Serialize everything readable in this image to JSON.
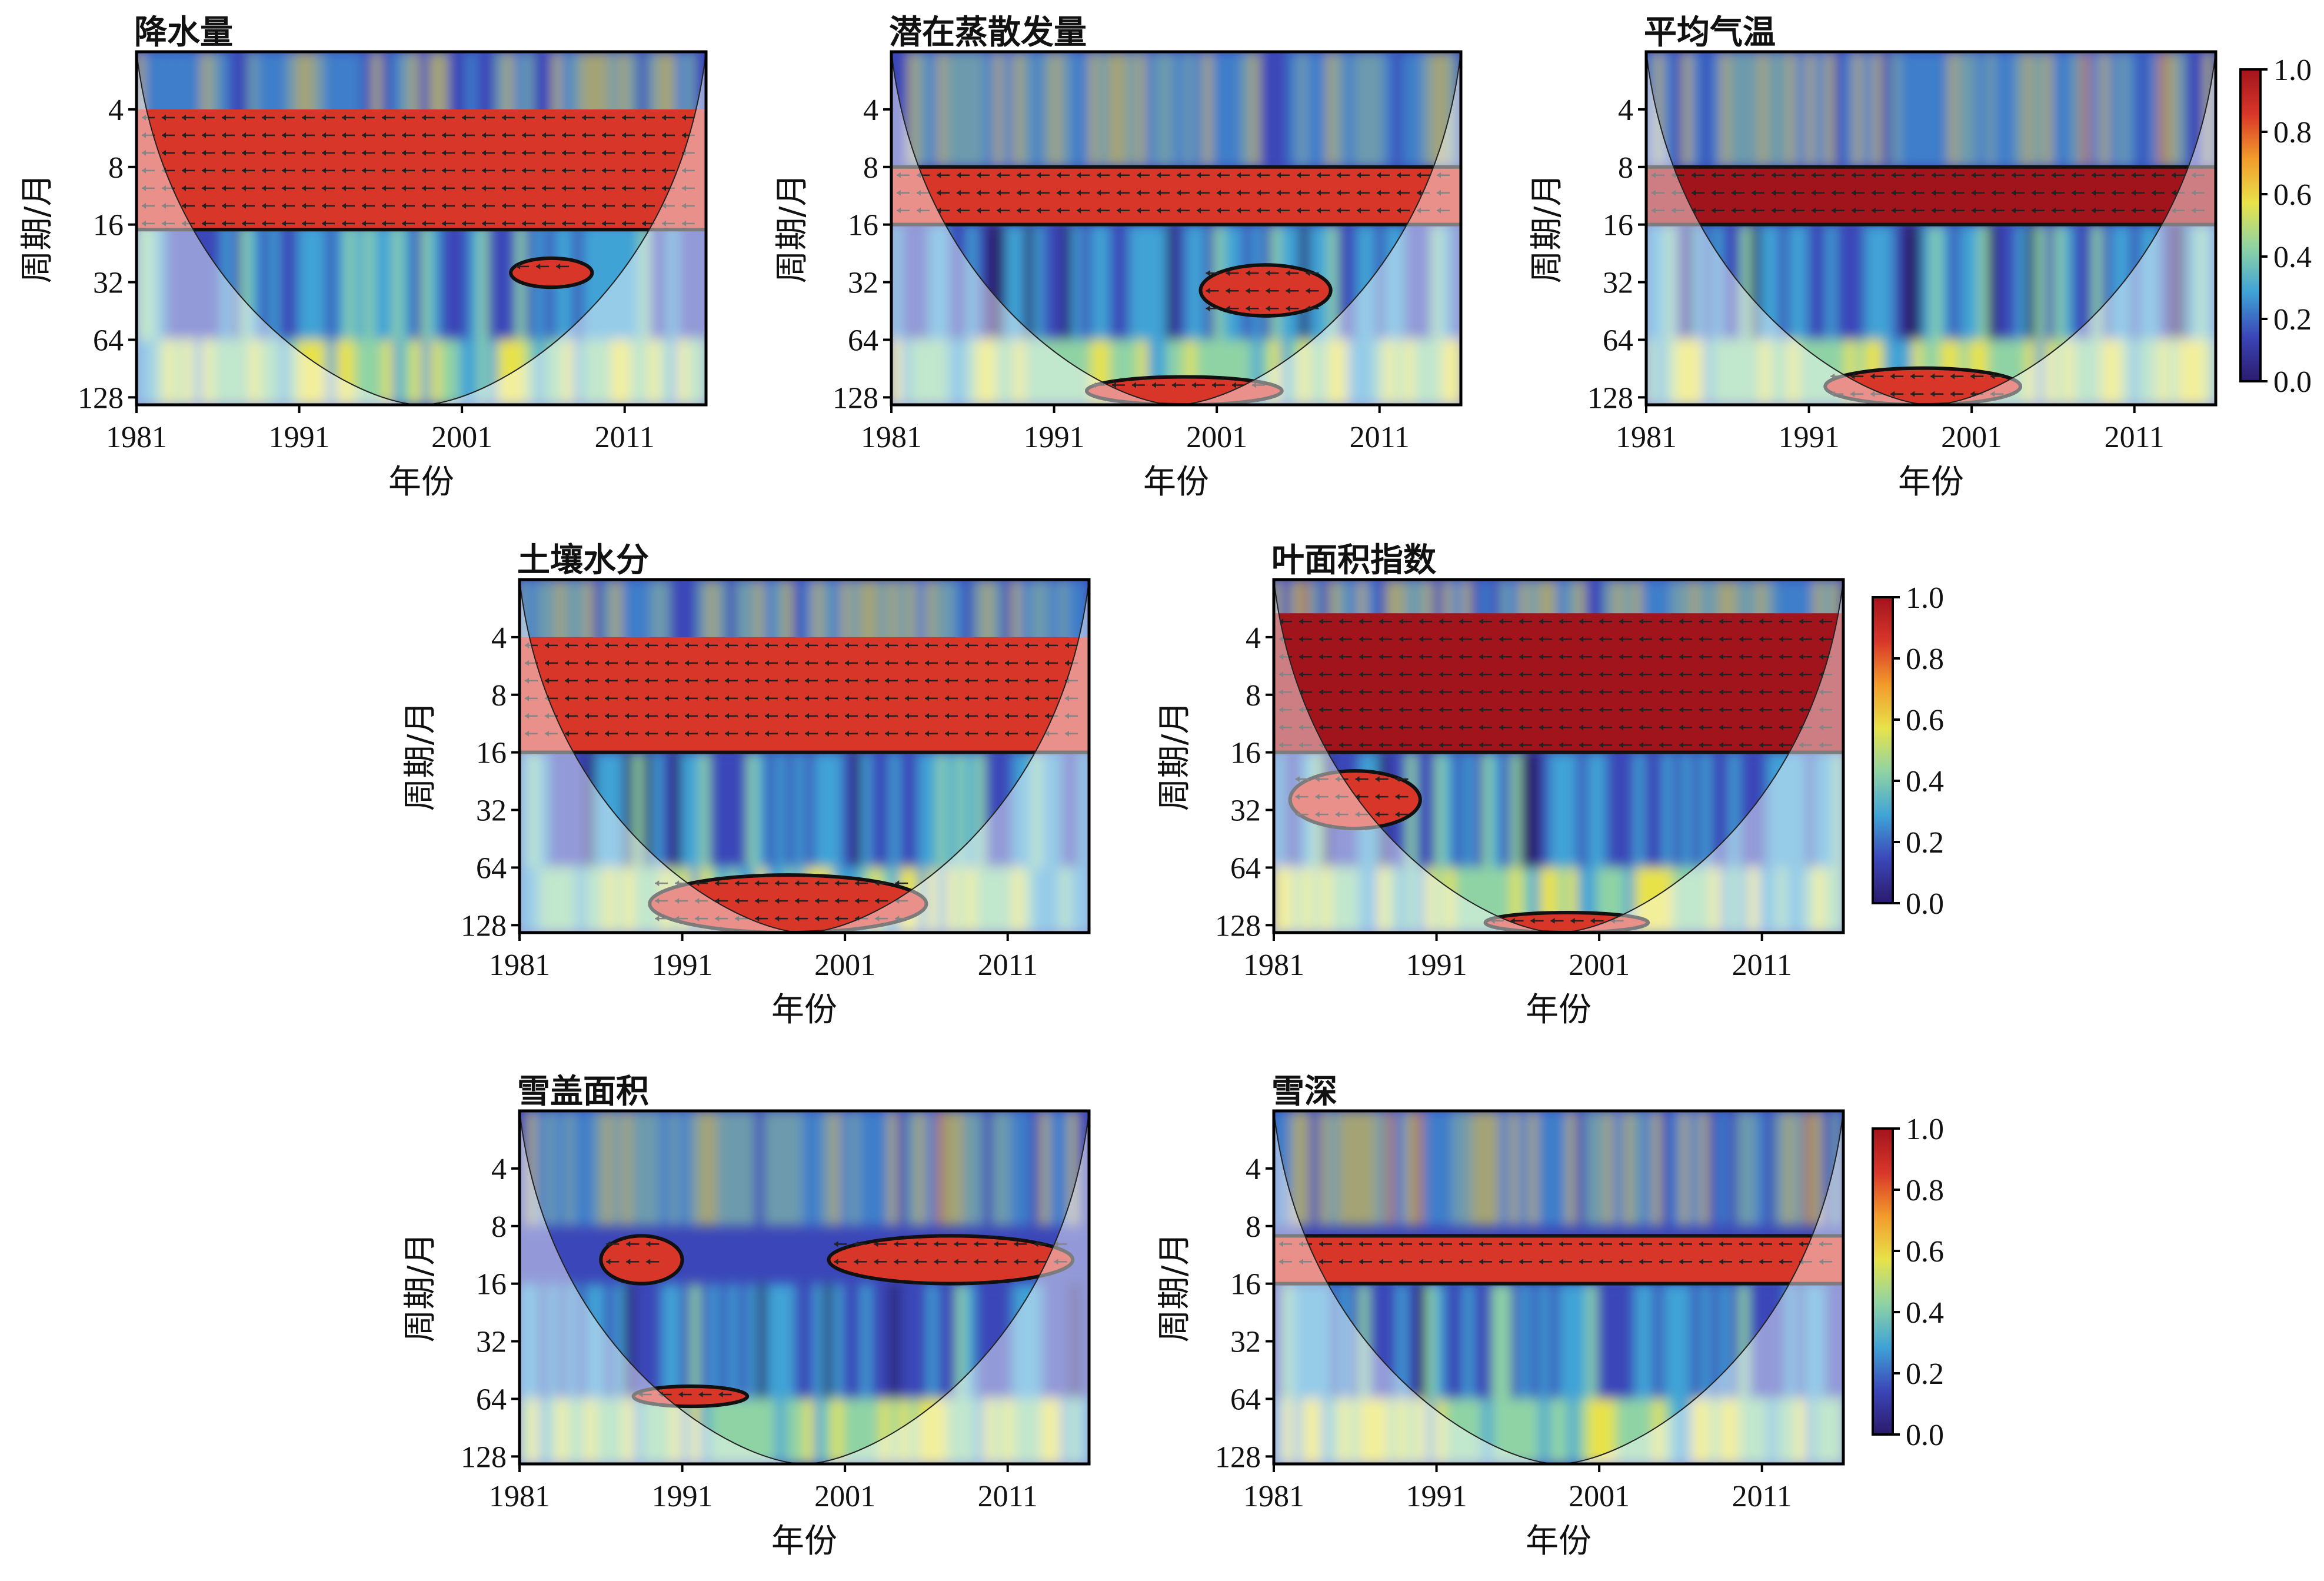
{
  "figure": {
    "colorbar": {
      "min": 0.0,
      "max": 1.0,
      "tick_labels": [
        "1.0",
        "0.8",
        "0.6",
        "0.4",
        "0.2",
        "0.0"
      ],
      "colormap": [
        "#2b1a6b",
        "#3b46b8",
        "#3fa3d6",
        "#8fd3a4",
        "#e8e24a",
        "#f29b2b",
        "#d9362a",
        "#a2141c"
      ]
    }
  },
  "chart_data": [
    {
      "type": "heatmap",
      "title": "降水量",
      "xlabel": "年份",
      "ylabel": "周期/月",
      "x_ticks": [
        "1981",
        "1991",
        "2001",
        "2011"
      ],
      "x_range": [
        1981,
        2016
      ],
      "y_ticks": [
        "4",
        "8",
        "16",
        "32",
        "64",
        "128"
      ],
      "y_scale": "log2",
      "y_range": [
        2,
        140
      ],
      "value_range": [
        0,
        1
      ],
      "high_coherence_bands": [
        {
          "period_min": 4,
          "period_max": 17,
          "x_min": 1981,
          "x_max": 2016,
          "value": 0.92
        },
        {
          "period_min": 24,
          "period_max": 34,
          "x_min": 2004,
          "x_max": 2009,
          "value": 0.88
        }
      ]
    },
    {
      "type": "heatmap",
      "title": "潜在蒸散发量",
      "xlabel": "年份",
      "ylabel": "周期/月",
      "x_ticks": [
        "1981",
        "1991",
        "2001",
        "2011"
      ],
      "x_range": [
        1981,
        2016
      ],
      "y_ticks": [
        "4",
        "8",
        "16",
        "32",
        "64",
        "128"
      ],
      "y_scale": "log2",
      "y_range": [
        2,
        140
      ],
      "value_range": [
        0,
        1
      ],
      "high_coherence_bands": [
        {
          "period_min": 8,
          "period_max": 16,
          "x_min": 1981,
          "x_max": 2016,
          "value": 0.92
        },
        {
          "period_min": 26,
          "period_max": 48,
          "x_min": 2000,
          "x_max": 2008,
          "value": 0.9
        },
        {
          "period_min": 100,
          "period_max": 140,
          "x_min": 1993,
          "x_max": 2005,
          "value": 0.9
        }
      ]
    },
    {
      "type": "heatmap",
      "title": "平均气温",
      "xlabel": "年份",
      "ylabel": "周期/月",
      "x_ticks": [
        "1981",
        "1991",
        "2001",
        "2011"
      ],
      "x_range": [
        1981,
        2016
      ],
      "y_ticks": [
        "4",
        "8",
        "16",
        "32",
        "64",
        "128"
      ],
      "y_scale": "log2",
      "y_range": [
        2,
        140
      ],
      "value_range": [
        0,
        1
      ],
      "high_coherence_bands": [
        {
          "period_min": 8,
          "period_max": 16,
          "x_min": 1981,
          "x_max": 2016,
          "value": 0.93
        },
        {
          "period_min": 90,
          "period_max": 140,
          "x_min": 1992,
          "x_max": 2004,
          "value": 0.9
        }
      ]
    },
    {
      "type": "heatmap",
      "title": "土壤水分",
      "xlabel": "年份",
      "ylabel": "周期/月",
      "x_ticks": [
        "1981",
        "1991",
        "2001",
        "2011"
      ],
      "x_range": [
        1981,
        2016
      ],
      "y_ticks": [
        "4",
        "8",
        "16",
        "32",
        "64",
        "128"
      ],
      "y_scale": "log2",
      "y_range": [
        2,
        140
      ],
      "value_range": [
        0,
        1
      ],
      "high_coherence_bands": [
        {
          "period_min": 4,
          "period_max": 16,
          "x_min": 1981,
          "x_max": 2016,
          "value": 0.92
        },
        {
          "period_min": 70,
          "period_max": 140,
          "x_min": 1989,
          "x_max": 2006,
          "value": 0.9
        }
      ]
    },
    {
      "type": "heatmap",
      "title": "叶面积指数",
      "xlabel": "年份",
      "ylabel": "周期/月",
      "x_ticks": [
        "1981",
        "1991",
        "2001",
        "2011"
      ],
      "x_range": [
        1981,
        2016
      ],
      "y_ticks": [
        "4",
        "8",
        "16",
        "32",
        "64",
        "128"
      ],
      "y_scale": "log2",
      "y_range": [
        2,
        140
      ],
      "value_range": [
        0,
        1
      ],
      "high_coherence_bands": [
        {
          "period_min": 3,
          "period_max": 16,
          "x_min": 1981,
          "x_max": 2016,
          "value": 0.93
        },
        {
          "period_min": 20,
          "period_max": 40,
          "x_min": 1982,
          "x_max": 1990,
          "value": 0.88
        },
        {
          "period_min": 110,
          "period_max": 140,
          "x_min": 1994,
          "x_max": 2004,
          "value": 0.88
        }
      ]
    },
    {
      "type": "heatmap",
      "title": "雪盖面积",
      "xlabel": "年份",
      "ylabel": "周期/月",
      "x_ticks": [
        "1981",
        "1991",
        "2001",
        "2011"
      ],
      "x_range": [
        1981,
        2016
      ],
      "y_ticks": [
        "4",
        "8",
        "16",
        "32",
        "64",
        "128"
      ],
      "y_scale": "log2",
      "y_range": [
        2,
        140
      ],
      "value_range": [
        0,
        1
      ],
      "high_coherence_bands": [
        {
          "period_min": 9,
          "period_max": 16,
          "x_min": 2000,
          "x_max": 2015,
          "value": 0.9
        },
        {
          "period_min": 9,
          "period_max": 16,
          "x_min": 1986,
          "x_max": 1991,
          "value": 0.88
        },
        {
          "period_min": 55,
          "period_max": 70,
          "x_min": 1988,
          "x_max": 1995,
          "value": 0.85
        }
      ]
    },
    {
      "type": "heatmap",
      "title": "雪深",
      "xlabel": "年份",
      "ylabel": "周期/月",
      "x_ticks": [
        "1981",
        "1991",
        "2001",
        "2011"
      ],
      "x_range": [
        1981,
        2016
      ],
      "y_ticks": [
        "4",
        "8",
        "16",
        "32",
        "64",
        "128"
      ],
      "y_scale": "log2",
      "y_range": [
        2,
        140
      ],
      "value_range": [
        0,
        1
      ],
      "high_coherence_bands": [
        {
          "period_min": 9,
          "period_max": 16,
          "x_min": 1981,
          "x_max": 2016,
          "value": 0.9
        }
      ]
    }
  ]
}
